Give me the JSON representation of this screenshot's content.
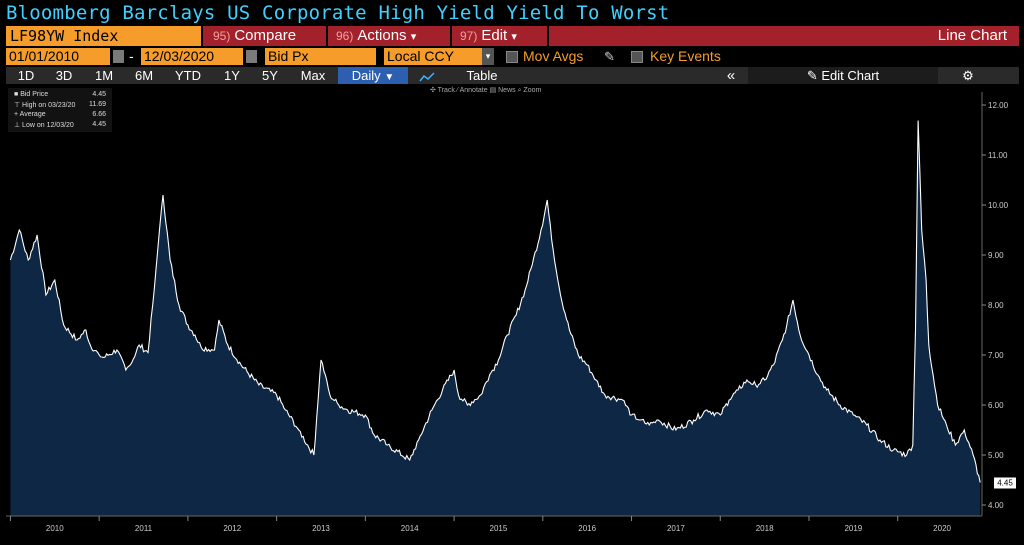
{
  "title": "Bloomberg Barclays US Corporate High Yield Yield To Worst",
  "ticker": "LF98YW Index",
  "buttons": {
    "compare_num": "95)",
    "compare": "Compare",
    "actions_num": "96)",
    "actions": "Actions",
    "edit_num": "97)",
    "edit": "Edit",
    "line_chart": "Line Chart"
  },
  "dropdown_arrow": "▾",
  "row2": {
    "start_date": "01/01/2010",
    "dash": "-",
    "end_date": "12/03/2020",
    "field": "Bid Px",
    "currency": "Local CCY",
    "mov_avgs": "Mov Avgs",
    "key_events": "Key Events"
  },
  "toolbar": {
    "periods": [
      "1D",
      "3D",
      "1M",
      "6M",
      "YTD",
      "1Y",
      "5Y",
      "Max"
    ],
    "frequency": "Daily",
    "table": "Table",
    "collapse": "«",
    "edit_chart": "Edit Chart",
    "gear": "⚙"
  },
  "legend": {
    "series": "Bid Price",
    "series_value": "4.45",
    "high_label": "High on 03/23/20",
    "high_value": "11.69",
    "avg_label": "Average",
    "avg_value": "6.66",
    "low_label": "Low on 12/03/20",
    "low_value": "4.45"
  },
  "chart_tools": "✣ Track  ⁄ Annotate  ▤ News  ⌕ Zoom",
  "colors": {
    "title": "#3fd0ff",
    "orange": "#f59c2a",
    "red": "#a3212a",
    "area": "#0d2744",
    "line": "#ffffff"
  },
  "chart_data": {
    "type": "area",
    "series": [
      {
        "name": "Bid Price",
        "points": [
          [
            2010.0,
            8.9
          ],
          [
            2010.1,
            9.5
          ],
          [
            2010.2,
            8.9
          ],
          [
            2010.3,
            9.4
          ],
          [
            2010.4,
            8.2
          ],
          [
            2010.5,
            8.5
          ],
          [
            2010.6,
            7.6
          ],
          [
            2010.75,
            7.3
          ],
          [
            2010.85,
            7.5
          ],
          [
            2010.9,
            7.2
          ],
          [
            2011.0,
            7.0
          ],
          [
            2011.05,
            6.95
          ],
          [
            2011.2,
            7.1
          ],
          [
            2011.3,
            6.7
          ],
          [
            2011.35,
            6.8
          ],
          [
            2011.45,
            7.2
          ],
          [
            2011.55,
            7.05
          ],
          [
            2011.62,
            8.3
          ],
          [
            2011.67,
            9.3
          ],
          [
            2011.72,
            10.2
          ],
          [
            2011.8,
            8.9
          ],
          [
            2011.9,
            8.0
          ],
          [
            2012.0,
            7.6
          ],
          [
            2012.08,
            7.4
          ],
          [
            2012.15,
            7.15
          ],
          [
            2012.3,
            7.1
          ],
          [
            2012.35,
            7.7
          ],
          [
            2012.45,
            7.2
          ],
          [
            2012.6,
            6.8
          ],
          [
            2012.8,
            6.4
          ],
          [
            2013.0,
            6.2
          ],
          [
            2013.1,
            5.9
          ],
          [
            2013.25,
            5.5
          ],
          [
            2013.35,
            5.2
          ],
          [
            2013.42,
            5.0
          ],
          [
            2013.5,
            6.9
          ],
          [
            2013.55,
            6.6
          ],
          [
            2013.6,
            6.2
          ],
          [
            2013.7,
            6.0
          ],
          [
            2013.8,
            5.9
          ],
          [
            2014.0,
            5.8
          ],
          [
            2014.1,
            5.4
          ],
          [
            2014.25,
            5.2
          ],
          [
            2014.5,
            4.9
          ],
          [
            2014.6,
            5.3
          ],
          [
            2014.75,
            5.9
          ],
          [
            2014.87,
            6.3
          ],
          [
            2015.0,
            6.7
          ],
          [
            2015.05,
            6.2
          ],
          [
            2015.15,
            6.0
          ],
          [
            2015.3,
            6.2
          ],
          [
            2015.4,
            6.6
          ],
          [
            2015.5,
            6.9
          ],
          [
            2015.6,
            7.4
          ],
          [
            2015.7,
            7.8
          ],
          [
            2015.8,
            8.3
          ],
          [
            2015.88,
            8.8
          ],
          [
            2015.98,
            9.5
          ],
          [
            2016.05,
            10.1
          ],
          [
            2016.1,
            9.3
          ],
          [
            2016.2,
            8.2
          ],
          [
            2016.3,
            7.5
          ],
          [
            2016.4,
            7.0
          ],
          [
            2016.5,
            6.8
          ],
          [
            2016.6,
            6.5
          ],
          [
            2016.7,
            6.2
          ],
          [
            2016.9,
            6.1
          ],
          [
            2017.0,
            5.8
          ],
          [
            2017.1,
            5.7
          ],
          [
            2017.2,
            5.6
          ],
          [
            2017.3,
            5.7
          ],
          [
            2017.5,
            5.5
          ],
          [
            2017.7,
            5.7
          ],
          [
            2017.85,
            5.9
          ],
          [
            2018.0,
            5.8
          ],
          [
            2018.1,
            6.1
          ],
          [
            2018.2,
            6.3
          ],
          [
            2018.3,
            6.5
          ],
          [
            2018.4,
            6.4
          ],
          [
            2018.5,
            6.5
          ],
          [
            2018.6,
            6.8
          ],
          [
            2018.7,
            7.3
          ],
          [
            2018.75,
            7.6
          ],
          [
            2018.82,
            8.1
          ],
          [
            2018.9,
            7.4
          ],
          [
            2019.0,
            7.0
          ],
          [
            2019.1,
            6.6
          ],
          [
            2019.2,
            6.3
          ],
          [
            2019.35,
            6.0
          ],
          [
            2019.5,
            5.8
          ],
          [
            2019.65,
            5.6
          ],
          [
            2019.8,
            5.3
          ],
          [
            2019.95,
            5.1
          ],
          [
            2020.1,
            5.0
          ],
          [
            2020.17,
            5.2
          ],
          [
            2020.2,
            7.5
          ],
          [
            2020.23,
            11.69
          ],
          [
            2020.27,
            9.5
          ],
          [
            2020.32,
            8.5
          ],
          [
            2020.35,
            7.2
          ],
          [
            2020.45,
            6.0
          ],
          [
            2020.55,
            5.6
          ],
          [
            2020.65,
            5.2
          ],
          [
            2020.75,
            5.5
          ],
          [
            2020.85,
            5.0
          ],
          [
            2020.93,
            4.45
          ]
        ]
      }
    ],
    "xlim": [
      2009.95,
      2020.95
    ],
    "ylim": [
      4.0,
      12.0
    ],
    "xticks": [
      "2010",
      "2011",
      "2012",
      "2013",
      "2014",
      "2015",
      "2016",
      "2017",
      "2018",
      "2019",
      "2020"
    ],
    "yticks": [
      "4.00",
      "5.00",
      "6.00",
      "7.00",
      "8.00",
      "9.00",
      "10.00",
      "11.00",
      "12.00"
    ],
    "last_value_label": "4.45",
    "grid": false
  }
}
